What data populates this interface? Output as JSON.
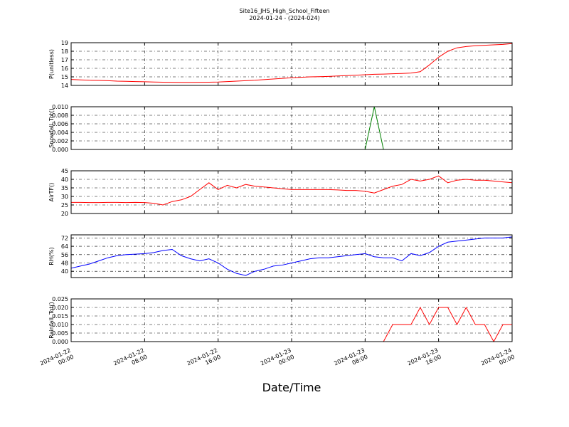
{
  "chart_data": {
    "type": "line",
    "title": "Site16_JHS_High_School_Fifteen",
    "subtitle": "2024-01-24 - (2024-024)",
    "xlabel": "Date/Time",
    "grid": true,
    "x": [
      "2024-01-22 00:00",
      "2024-01-22 01:00",
      "2024-01-22 02:00",
      "2024-01-22 03:00",
      "2024-01-22 04:00",
      "2024-01-22 05:00",
      "2024-01-22 06:00",
      "2024-01-22 07:00",
      "2024-01-22 08:00",
      "2024-01-22 09:00",
      "2024-01-22 10:00",
      "2024-01-22 11:00",
      "2024-01-22 12:00",
      "2024-01-22 13:00",
      "2024-01-22 14:00",
      "2024-01-22 15:00",
      "2024-01-22 16:00",
      "2024-01-22 17:00",
      "2024-01-22 18:00",
      "2024-01-22 19:00",
      "2024-01-22 20:00",
      "2024-01-22 21:00",
      "2024-01-22 22:00",
      "2024-01-22 23:00",
      "2024-01-23 00:00",
      "2024-01-23 01:00",
      "2024-01-23 02:00",
      "2024-01-23 03:00",
      "2024-01-23 04:00",
      "2024-01-23 05:00",
      "2024-01-23 06:00",
      "2024-01-23 07:00",
      "2024-01-23 08:00",
      "2024-01-23 09:00",
      "2024-01-23 10:00",
      "2024-01-23 11:00",
      "2024-01-23 12:00",
      "2024-01-23 13:00",
      "2024-01-23 14:00",
      "2024-01-23 15:00",
      "2024-01-23 16:00",
      "2024-01-23 17:00",
      "2024-01-23 18:00",
      "2024-01-23 19:00",
      "2024-01-23 20:00",
      "2024-01-23 21:00",
      "2024-01-23 22:00",
      "2024-01-23 23:00",
      "2024-01-24 00:00"
    ],
    "xlim": [
      "2024-01-22 00:00",
      "2024-01-24 00:00"
    ],
    "xticks": [
      "2024-01-22 00:00",
      "2024-01-22 08:00",
      "2024-01-22 16:00",
      "2024-01-23 00:00",
      "2024-01-23 08:00",
      "2024-01-23 16:00",
      "2024-01-24 00:00"
    ],
    "panels": [
      {
        "ylabel": "P(unitless)",
        "ylim": [
          14,
          19
        ],
        "yticks": [
          14,
          15,
          16,
          17,
          18,
          19
        ],
        "series": [
          {
            "color": "#ff0000",
            "values": [
              14.7,
              14.65,
              14.6,
              14.58,
              14.55,
              14.5,
              14.48,
              14.45,
              14.43,
              14.4,
              14.38,
              14.36,
              14.35,
              14.35,
              14.36,
              14.38,
              14.4,
              14.45,
              14.5,
              14.55,
              14.6,
              14.68,
              14.75,
              14.82,
              14.9,
              14.95,
              15.0,
              15.02,
              15.05,
              15.1,
              15.15,
              15.2,
              15.25,
              15.3,
              15.32,
              15.36,
              15.4,
              15.45,
              15.6,
              16.4,
              17.3,
              18.0,
              18.4,
              18.55,
              18.65,
              18.7,
              18.75,
              18.8,
              18.9
            ]
          }
        ]
      },
      {
        "ylabel": "Snowfall_Tot()",
        "ylim": [
          0,
          0.01
        ],
        "yticks": [
          {
            "value": 0,
            "label": "0.000"
          },
          {
            "value": 0.002,
            "label": "0.002"
          },
          {
            "value": 0.004,
            "label": "0.004"
          },
          {
            "value": 0.006,
            "label": "0.006"
          },
          {
            "value": 0.008,
            "label": "0.008"
          },
          {
            "value": 0.01,
            "label": "0.010"
          }
        ],
        "series": [
          {
            "color": "#008000",
            "values": [
              0,
              0,
              0,
              0,
              0,
              0,
              0,
              0,
              0,
              0,
              0,
              0,
              0,
              0,
              0,
              0,
              0,
              0,
              0,
              0,
              0,
              0,
              0,
              0,
              0,
              0,
              0,
              0,
              0,
              0,
              0,
              0,
              0,
              0.01,
              0,
              0,
              0,
              0,
              0,
              0,
              0,
              0,
              0,
              0,
              0,
              0,
              0,
              0,
              0
            ]
          }
        ]
      },
      {
        "ylabel": "AirTF()",
        "ylim": [
          20,
          45
        ],
        "yticks": [
          20,
          25,
          30,
          35,
          40,
          45
        ],
        "series": [
          {
            "color": "#ff0000",
            "values": [
              26.5,
              26.5,
              26.4,
              26.4,
              26.5,
              26.5,
              26.4,
              26.5,
              26.4,
              26,
              25,
              27,
              28,
              30,
              34,
              38,
              34,
              36.5,
              35,
              37,
              36,
              35.5,
              35,
              34.5,
              34,
              34,
              34,
              34,
              34,
              33.8,
              33.5,
              33.5,
              33,
              32,
              34,
              36,
              37,
              40,
              39,
              40,
              42,
              38,
              39.5,
              40,
              39.5,
              39.5,
              39,
              38.5,
              38
            ]
          }
        ]
      },
      {
        "ylabel": "RH(%)",
        "ylim": [
          34,
          75
        ],
        "yticks": [
          40,
          48,
          56,
          64,
          72
        ],
        "series": [
          {
            "color": "#0000ff",
            "values": [
              43,
              45,
              47,
              50,
              53,
              55,
              56,
              56.5,
              57,
              58,
              60,
              61,
              55,
              52,
              50,
              52,
              48,
              42,
              38,
              36,
              40,
              42,
              45,
              46,
              48,
              50,
              52,
              53,
              53,
              54,
              55,
              56,
              57,
              54,
              53,
              53,
              50,
              57,
              55,
              58,
              64,
              68,
              69,
              70,
              71,
              72,
              72,
              72,
              73
            ]
          }
        ]
      },
      {
        "ylabel": "Rainfall_Tot()",
        "ylim": [
          0,
          0.025
        ],
        "yticks": [
          {
            "value": 0,
            "label": "0.000"
          },
          {
            "value": 0.005,
            "label": "0.005"
          },
          {
            "value": 0.01,
            "label": "0.010"
          },
          {
            "value": 0.015,
            "label": "0.015"
          },
          {
            "value": 0.02,
            "label": "0.020"
          },
          {
            "value": 0.025,
            "label": "0.025"
          }
        ],
        "series": [
          {
            "color": "#ff0000",
            "values": [
              0,
              0,
              0,
              0,
              0,
              0,
              0,
              0,
              0,
              0,
              0,
              0,
              0,
              0,
              0,
              0,
              0,
              0,
              0,
              0,
              0,
              0,
              0,
              0,
              0,
              0,
              0,
              0,
              0,
              0,
              0,
              0,
              0,
              0,
              0,
              0.01,
              0.01,
              0.01,
              0.02,
              0.01,
              0.02,
              0.02,
              0.01,
              0.02,
              0.01,
              0.01,
              0,
              0.01,
              0.01
            ]
          }
        ]
      }
    ]
  }
}
